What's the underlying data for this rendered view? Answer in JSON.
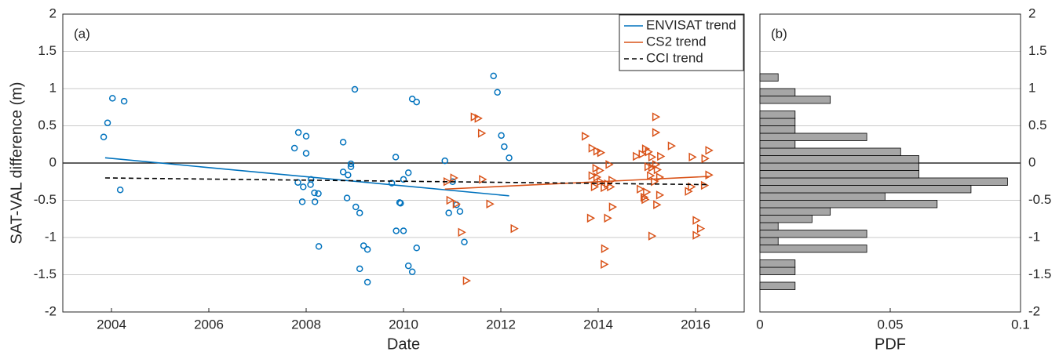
{
  "chart_data": [
    {
      "type": "scatter",
      "annotation": "(a)",
      "xlabel": "Date",
      "ylabel": "SAT-VAL difference (m)",
      "xlim": [
        2003,
        2017
      ],
      "xticks": [
        2004,
        2006,
        2008,
        2010,
        2012,
        2014,
        2016
      ],
      "ylim": [
        -2,
        2
      ],
      "yticks": [
        2,
        1.5,
        1,
        0.5,
        0,
        -0.5,
        -1,
        -1.5,
        -2
      ],
      "grid": true,
      "legend": "upper right",
      "series": [
        {
          "color": "#0072bd",
          "marker": "circle",
          "x": [
            2003.84,
            2003.92,
            2004.02,
            2004.26,
            2004.18,
            2007.76,
            2007.84,
            2008.0,
            2008.0,
            2007.83,
            2007.94,
            2008.09,
            2008.1,
            2008.17,
            2008.25,
            2007.92,
            2008.18,
            2008.26,
            2008.76,
            2008.76,
            2008.86,
            2008.92,
            2008.92,
            2009.0,
            2008.84,
            2009.02,
            2009.1,
            2009.1,
            2009.18,
            2009.26,
            2009.26,
            2009.84,
            2009.76,
            2009.85,
            2009.92,
            2009.94,
            2010.0,
            2010.0,
            2010.1,
            2010.18,
            2010.27,
            2010.1,
            2010.18,
            2010.27,
            2010.85,
            2010.93,
            2011.01,
            2011.09,
            2011.16,
            2011.25,
            2011.85,
            2011.93,
            2012.01,
            2012.07,
            2012.17
          ],
          "values": [
            0.35,
            0.54,
            0.87,
            0.83,
            -0.36,
            0.2,
            0.41,
            0.36,
            0.13,
            -0.26,
            -0.32,
            -0.29,
            -0.22,
            -0.4,
            -0.41,
            -0.52,
            -0.52,
            -1.12,
            0.28,
            -0.12,
            -0.16,
            -0.01,
            -0.05,
            0.99,
            -0.47,
            -0.59,
            -0.67,
            -1.42,
            -1.11,
            -1.16,
            -1.6,
            0.08,
            -0.27,
            -0.91,
            -0.53,
            -0.54,
            -0.22,
            -0.91,
            -0.13,
            0.86,
            0.82,
            -1.38,
            -1.46,
            -1.14,
            0.03,
            -0.67,
            -0.25,
            -0.56,
            -0.65,
            -1.06,
            1.17,
            0.95,
            0.37,
            0.22,
            0.07
          ]
        },
        {
          "color": "#d95319",
          "marker": "triangle",
          "x": [
            2011.45,
            2011.53,
            2011.6,
            2010.89,
            2011.03,
            2010.95,
            2011.08,
            2011.19,
            2011.29,
            2011.62,
            2011.77,
            2012.27,
            2013.73,
            2013.87,
            2013.97,
            2014.05,
            2013.95,
            2014.03,
            2013.87,
            2013.97,
            2013.92,
            2014.04,
            2014.12,
            2014.19,
            2014.25,
            2014.28,
            2014.22,
            2013.84,
            2014.19,
            2014.29,
            2014.13,
            2014.12,
            2014.78,
            2014.9,
            2014.97,
            2015.03,
            2015.1,
            2015.02,
            2015.1,
            2015.18,
            2015.21,
            2014.86,
            2014.99,
            2015.07,
            2015.15,
            2015.28,
            2015.18,
            2015.18,
            2015.26,
            2015.26,
            2015.2,
            2014.94,
            2014.96,
            2015.1,
            2015.5,
            2015.85,
            2015.91,
            2015.93,
            2016.01,
            2016.01,
            2016.1,
            2016.19,
            2016.27,
            2016.27,
            2016.18
          ],
          "values": [
            0.62,
            0.6,
            0.4,
            -0.25,
            -0.2,
            -0.5,
            -0.55,
            -0.93,
            -1.58,
            -0.22,
            -0.55,
            -0.88,
            0.36,
            0.2,
            0.16,
            0.14,
            -0.07,
            -0.1,
            -0.17,
            -0.19,
            -0.32,
            -0.25,
            -0.33,
            -0.28,
            -0.32,
            -0.23,
            -0.02,
            -0.74,
            -0.74,
            -0.59,
            -1.15,
            -1.36,
            0.09,
            0.12,
            0.19,
            0.15,
            0.08,
            -0.05,
            -0.06,
            -0.02,
            -0.09,
            -0.35,
            -0.39,
            -0.17,
            -0.25,
            0.09,
            0.62,
            0.41,
            -0.19,
            -0.43,
            -0.56,
            -0.46,
            -0.49,
            -0.98,
            0.23,
            -0.38,
            -0.32,
            0.08,
            -0.77,
            -0.97,
            -0.88,
            0.06,
            0.17,
            -0.16,
            -0.3
          ]
        },
        {
          "name": "ENVISAT trend",
          "color": "#0072bd",
          "line": "solid",
          "x": [
            2003.87,
            2012.17
          ],
          "values": [
            0.07,
            -0.44
          ]
        },
        {
          "name": "CS2 trend",
          "color": "#d95319",
          "line": "solid",
          "x": [
            2010.85,
            2016.27
          ],
          "values": [
            -0.35,
            -0.18
          ]
        },
        {
          "name": "CCI trend",
          "color": "#000000",
          "line": "dashed",
          "x": [
            2003.87,
            2016.27
          ],
          "values": [
            -0.2,
            -0.29
          ]
        }
      ]
    },
    {
      "type": "histogram",
      "orientation": "horizontal",
      "annotation": "(b)",
      "xlabel": "PDF",
      "color": "#a6a6a6",
      "xlim": [
        0,
        0.1
      ],
      "xticks": [
        0,
        0.05,
        0.1
      ],
      "ylim": [
        -2,
        2
      ],
      "yticks": [
        2,
        1.5,
        1,
        0.5,
        0,
        -0.5,
        -1,
        -1.5,
        -2
      ],
      "grid": true,
      "bins": [
        -1.7,
        -1.6,
        -1.5,
        -1.4,
        -1.3,
        -1.2,
        -1.1,
        -1.0,
        -0.9,
        -0.8,
        -0.7,
        -0.6,
        -0.5,
        -0.4,
        -0.3,
        -0.2,
        -0.1,
        0,
        0.1,
        0.2,
        0.3,
        0.4,
        0.5,
        0.6,
        0.7,
        0.8,
        0.9,
        1.0,
        1.1,
        1.2
      ],
      "values": [
        0.0135,
        0,
        0.0135,
        0.0135,
        0,
        0.041,
        0.007,
        0.041,
        0.007,
        0.02,
        0.027,
        0.068,
        0.048,
        0.081,
        0.095,
        0.061,
        0.061,
        0.061,
        0.054,
        0.0135,
        0.041,
        0.0135,
        0.0135,
        0.0135,
        0,
        0.027,
        0.0135,
        0,
        0.007
      ]
    }
  ]
}
